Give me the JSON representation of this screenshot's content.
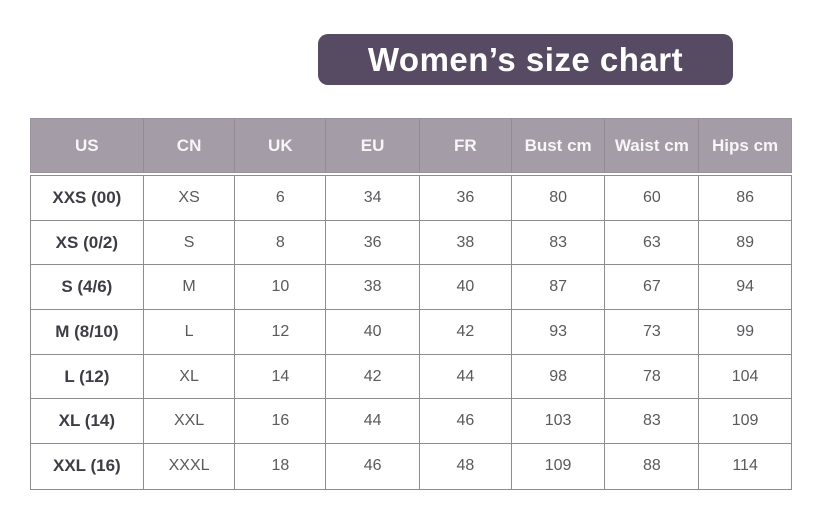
{
  "title": "Women’s size chart",
  "colors": {
    "banner_bg": "#574b63",
    "banner_text": "#ffffff",
    "header_bg": "#a49ca6",
    "header_text": "#f7f5f7",
    "body_border": "#8d8d8d",
    "body_text": "#5a5a5e",
    "us_column_text": "#3e3d45"
  },
  "chart_data": {
    "type": "table",
    "title": "Women’s size chart",
    "columns": [
      "US",
      "CN",
      "UK",
      "EU",
      "FR",
      "Bust cm",
      "Waist cm",
      "Hips cm"
    ],
    "rows": [
      [
        "XXS (00)",
        "XS",
        "6",
        "34",
        "36",
        "80",
        "60",
        "86"
      ],
      [
        "XS (0/2)",
        "S",
        "8",
        "36",
        "38",
        "83",
        "63",
        "89"
      ],
      [
        "S (4/6)",
        "M",
        "10",
        "38",
        "40",
        "87",
        "67",
        "94"
      ],
      [
        "M (8/10)",
        "L",
        "12",
        "40",
        "42",
        "93",
        "73",
        "99"
      ],
      [
        "L (12)",
        "XL",
        "14",
        "42",
        "44",
        "98",
        "78",
        "104"
      ],
      [
        "XL (14)",
        "XXL",
        "16",
        "44",
        "46",
        "103",
        "83",
        "109"
      ],
      [
        "XXL (16)",
        "XXXL",
        "18",
        "46",
        "48",
        "109",
        "88",
        "114"
      ]
    ]
  }
}
